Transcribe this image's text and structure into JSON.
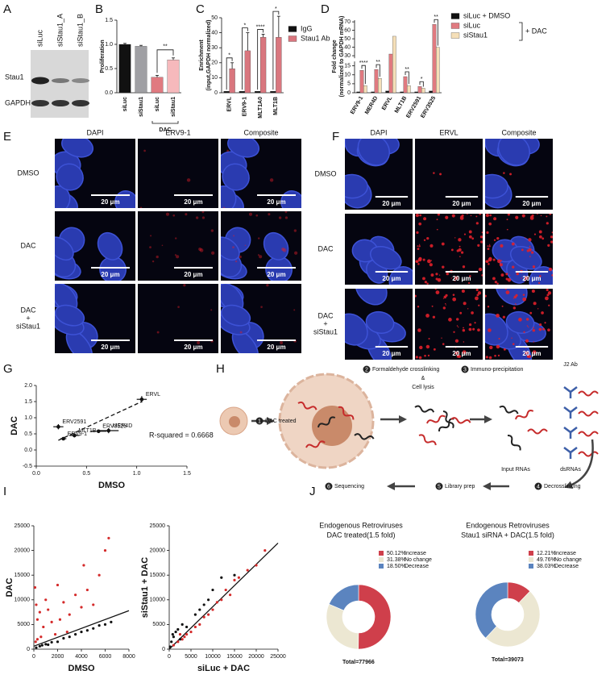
{
  "panel_labels": [
    "A",
    "B",
    "C",
    "D",
    "E",
    "F",
    "G",
    "H",
    "I",
    "J"
  ],
  "blot": {
    "lanes": [
      "siLuc",
      "siStau1_A",
      "siStau1_B"
    ],
    "bands": [
      "Stau1",
      "GAPDH"
    ]
  },
  "microscopy": [
    {
      "columns": [
        "DAPI",
        "ERV9-1",
        "Composite"
      ],
      "rows": [
        "DMSO",
        "DAC",
        [
          "DAC",
          "+",
          "siStau1"
        ]
      ],
      "scale_bar": "20 μm"
    },
    {
      "columns": [
        "DAPI",
        "ERVL",
        "Composite"
      ],
      "rows": [
        "DMSO",
        "DAC",
        [
          "DAC",
          "+",
          "siStau1"
        ]
      ],
      "scale_bar": "20 μm"
    }
  ],
  "diagram": {
    "steps": [
      {
        "number": "1",
        "label": [
          "DAC treated"
        ]
      },
      {
        "number": "2",
        "label": [
          "Formaldehyde crosslinking",
          "&",
          "Cell lysis"
        ]
      },
      {
        "number": "3",
        "label": [
          "Immuno-precipitation"
        ]
      },
      {
        "number": "4",
        "label": [
          "Decrosslinking"
        ]
      },
      {
        "number": "5",
        "label": [
          "Library prep"
        ]
      },
      {
        "number": "6",
        "label": [
          "Sequencing"
        ]
      }
    ],
    "labels": [
      "J2 Ab",
      "Input RNAs",
      "dsRNAs"
    ]
  },
  "chart_data": [
    {
      "type": "bar",
      "ylabel": "Proliferation",
      "categories": [
        "siLuc",
        "siStau1",
        "siLuc",
        "siStau1"
      ],
      "values": [
        1.0,
        0.96,
        0.32,
        0.68
      ],
      "errors": [
        0.02,
        0.02,
        0.04,
        0.04
      ],
      "colors": [
        "#111111",
        "#a0a0a4",
        "#e07a80",
        "#f6b9bc"
      ],
      "ylim": [
        0,
        1.5
      ],
      "yticks": [
        {
          "value": 0,
          "label": "0.0"
        },
        0.5,
        {
          "value": 1,
          "label": "1.0"
        },
        1.5
      ],
      "annotation": "**",
      "group_label": "DAC"
    },
    {
      "type": "bar",
      "ylabel": [
        "Enrichment",
        "(input,GAPDH normalized)"
      ],
      "categories": [
        "ERVL",
        "ERV9-1",
        "MLT1A0",
        "MLT1B"
      ],
      "series": [
        {
          "name": "IgG",
          "color": "#111111",
          "values": [
            1,
            1,
            1,
            1
          ]
        },
        {
          "name": "Stau1 Ab",
          "color": "#d9767e",
          "values": [
            16,
            28,
            37,
            37
          ],
          "errors": [
            4,
            12,
            2,
            14
          ]
        }
      ],
      "significance": [
        "*",
        "*",
        "****",
        "*"
      ],
      "ylim": [
        0,
        50
      ],
      "yticks": [
        0,
        10,
        20,
        30,
        40,
        50
      ]
    },
    {
      "type": "bar",
      "ylabel": [
        "Fold change",
        "(normalized to GAPDH mRNA)"
      ],
      "categories": [
        "ERV9-1",
        "MER4D",
        "ERVL",
        "MLT1B",
        "ERV2591",
        "ERV3525"
      ],
      "series": [
        {
          "name": "siLuc + DMSO",
          "color": "#111111",
          "values": [
            0.5,
            0.5,
            1,
            0.5,
            0.5,
            1
          ]
        },
        {
          "name": "siLuc",
          "color": "#e07a80",
          "values": [
            12.5,
            13,
            32,
            9,
            3.5,
            67
          ]
        },
        {
          "name": "siStau1",
          "color": "#f5dfb8",
          "values": [
            4,
            8,
            53,
            4,
            2.5,
            40
          ]
        }
      ],
      "significance": [
        "****",
        "**",
        null,
        "**",
        "*",
        "**"
      ],
      "legend_group_label": "+ DAC",
      "ylim": [
        0,
        72
      ],
      "ybreak": [
        17,
        28
      ],
      "yticks": [
        0,
        5,
        10,
        15,
        30,
        40,
        50,
        60,
        70
      ]
    },
    {
      "type": "scatter",
      "xlabel": "DMSO",
      "ylabel": "DAC",
      "series": [
        {
          "color": "#111111",
          "x": [
            1.05,
            0.22,
            0.72,
            0.38,
            0.62,
            0.27
          ],
          "values": [
            1.57,
            0.72,
            0.6,
            0.45,
            0.58,
            0.35
          ],
          "xerr": [
            0.05,
            0.05,
            0.1,
            0.05,
            0.08,
            0.03
          ],
          "yerr": [
            0.1,
            0.08,
            0.08,
            0.06,
            0.05,
            0.03
          ],
          "point_labels": [
            "ERVL",
            "ERV2591",
            "MER4D",
            "MLT1B",
            "ERV3525",
            "ERV9-1"
          ]
        }
      ],
      "fit": {
        "x": [
          0.22,
          1.05
        ],
        "values": [
          0.3,
          1.5
        ],
        "style": "dashed"
      },
      "annotation": "R-squared = 0.6668",
      "xlim": [
        0,
        1.5
      ],
      "xticks": [
        {
          "value": 0,
          "label": "0.0"
        },
        0.5,
        {
          "value": 1,
          "label": "1.0"
        },
        1.5
      ],
      "ylim": [
        -0.5,
        2
      ],
      "yticks": [
        -0.5,
        {
          "value": 0,
          "label": "0.0"
        },
        0.5,
        {
          "value": 1,
          "label": "1.0"
        },
        1.5,
        {
          "value": 2,
          "label": "2.0"
        }
      ]
    },
    {
      "type": "scatter",
      "xlabel": "DMSO",
      "ylabel": "DAC",
      "series": [
        {
          "color": "#d42a2a",
          "x": [
            100,
            200,
            300,
            500,
            800,
            1000,
            1200,
            1500,
            2000,
            2200,
            2500,
            3000,
            3500,
            4000,
            4500,
            5000,
            5500,
            6000,
            6300,
            4200,
            2800,
            1800,
            600,
            300,
            150
          ],
          "values": [
            12500,
            9000,
            6000,
            7500,
            4500,
            10000,
            8000,
            5500,
            13000,
            6000,
            9500,
            7000,
            11000,
            8500,
            12000,
            9000,
            15000,
            20000,
            22500,
            17000,
            3500,
            3000,
            2500,
            2000,
            1500
          ]
        },
        {
          "color": "#111111",
          "x": [
            200,
            500,
            1000,
            1500,
            2000,
            2500,
            3000,
            3500,
            4000,
            4500,
            5000,
            5500,
            6000,
            6500,
            700,
            1200
          ],
          "values": [
            300,
            600,
            1000,
            1400,
            1500,
            2200,
            2500,
            3000,
            3500,
            3800,
            4200,
            4800,
            5000,
            5500,
            800,
            900
          ]
        }
      ],
      "fit": {
        "x": [
          0,
          8000
        ],
        "values": [
          600,
          7800
        ],
        "style": "solid"
      },
      "xlim": [
        0,
        8000
      ],
      "xticks": [
        0,
        2000,
        4000,
        6000,
        8000
      ],
      "ylim": [
        0,
        25000
      ],
      "yticks": [
        0,
        5000,
        10000,
        15000,
        20000,
        25000
      ]
    },
    {
      "type": "scatter",
      "xlabel": "siLuc + DAC",
      "ylabel": "siStau1 + DAC",
      "series": [
        {
          "color": "#d42a2a",
          "x": [
            1000,
            2000,
            3000,
            4000,
            5000,
            6000,
            7000,
            8000,
            9000,
            10000,
            11000,
            12000,
            13000,
            14000,
            15000,
            16000,
            18000,
            20000,
            22000,
            2500,
            3500
          ],
          "values": [
            800,
            1500,
            2000,
            3000,
            3500,
            4500,
            5000,
            6500,
            7000,
            8000,
            9500,
            10000,
            12000,
            11000,
            14000,
            14500,
            16000,
            17000,
            20000,
            3000,
            2500
          ]
        },
        {
          "color": "#111111",
          "x": [
            200,
            500,
            1000,
            1500,
            2000,
            3000,
            800,
            2500,
            4000,
            6000,
            7000,
            8000,
            9000,
            10000,
            12000,
            15000
          ],
          "values": [
            500,
            1500,
            2500,
            3500,
            4000,
            5000,
            3000,
            2000,
            4500,
            7000,
            8000,
            9000,
            10000,
            12000,
            14500,
            15000
          ]
        }
      ],
      "fit": {
        "x": [
          0,
          25000
        ],
        "values": [
          0,
          21500
        ],
        "style": "solid"
      },
      "xlim": [
        0,
        25000
      ],
      "xticks": [
        0,
        5000,
        10000,
        15000,
        20000,
        25000
      ],
      "ylim": [
        0,
        25000
      ],
      "yticks": [
        0,
        5000,
        10000,
        15000,
        20000,
        25000
      ]
    },
    {
      "type": "pie",
      "title": [
        "Endogenous Retroviruses",
        "DAC treated(1.5 fold)"
      ],
      "categories": [
        "Increase",
        "No change",
        "Decrease"
      ],
      "values": [
        50.12,
        31.38,
        18.5
      ],
      "value_labels": [
        "50.12%",
        "31.38%",
        "18.50%"
      ],
      "colors": [
        "#cf3f4b",
        "#ece7d2",
        "#5b84bf"
      ],
      "donut": true,
      "total": "Total=77966"
    },
    {
      "type": "pie",
      "title": [
        "Endogenous Retroviruses",
        "Stau1 siRNA + DAC(1.5 fold)"
      ],
      "categories": [
        "Increase",
        "No change",
        "Decrease"
      ],
      "values": [
        12.21,
        49.76,
        38.03
      ],
      "value_labels": [
        "12.21%",
        "49.76%",
        "38.03%"
      ],
      "colors": [
        "#cf3f4b",
        "#ece7d2",
        "#5b84bf"
      ],
      "donut": true,
      "total": "Total=39073"
    }
  ]
}
